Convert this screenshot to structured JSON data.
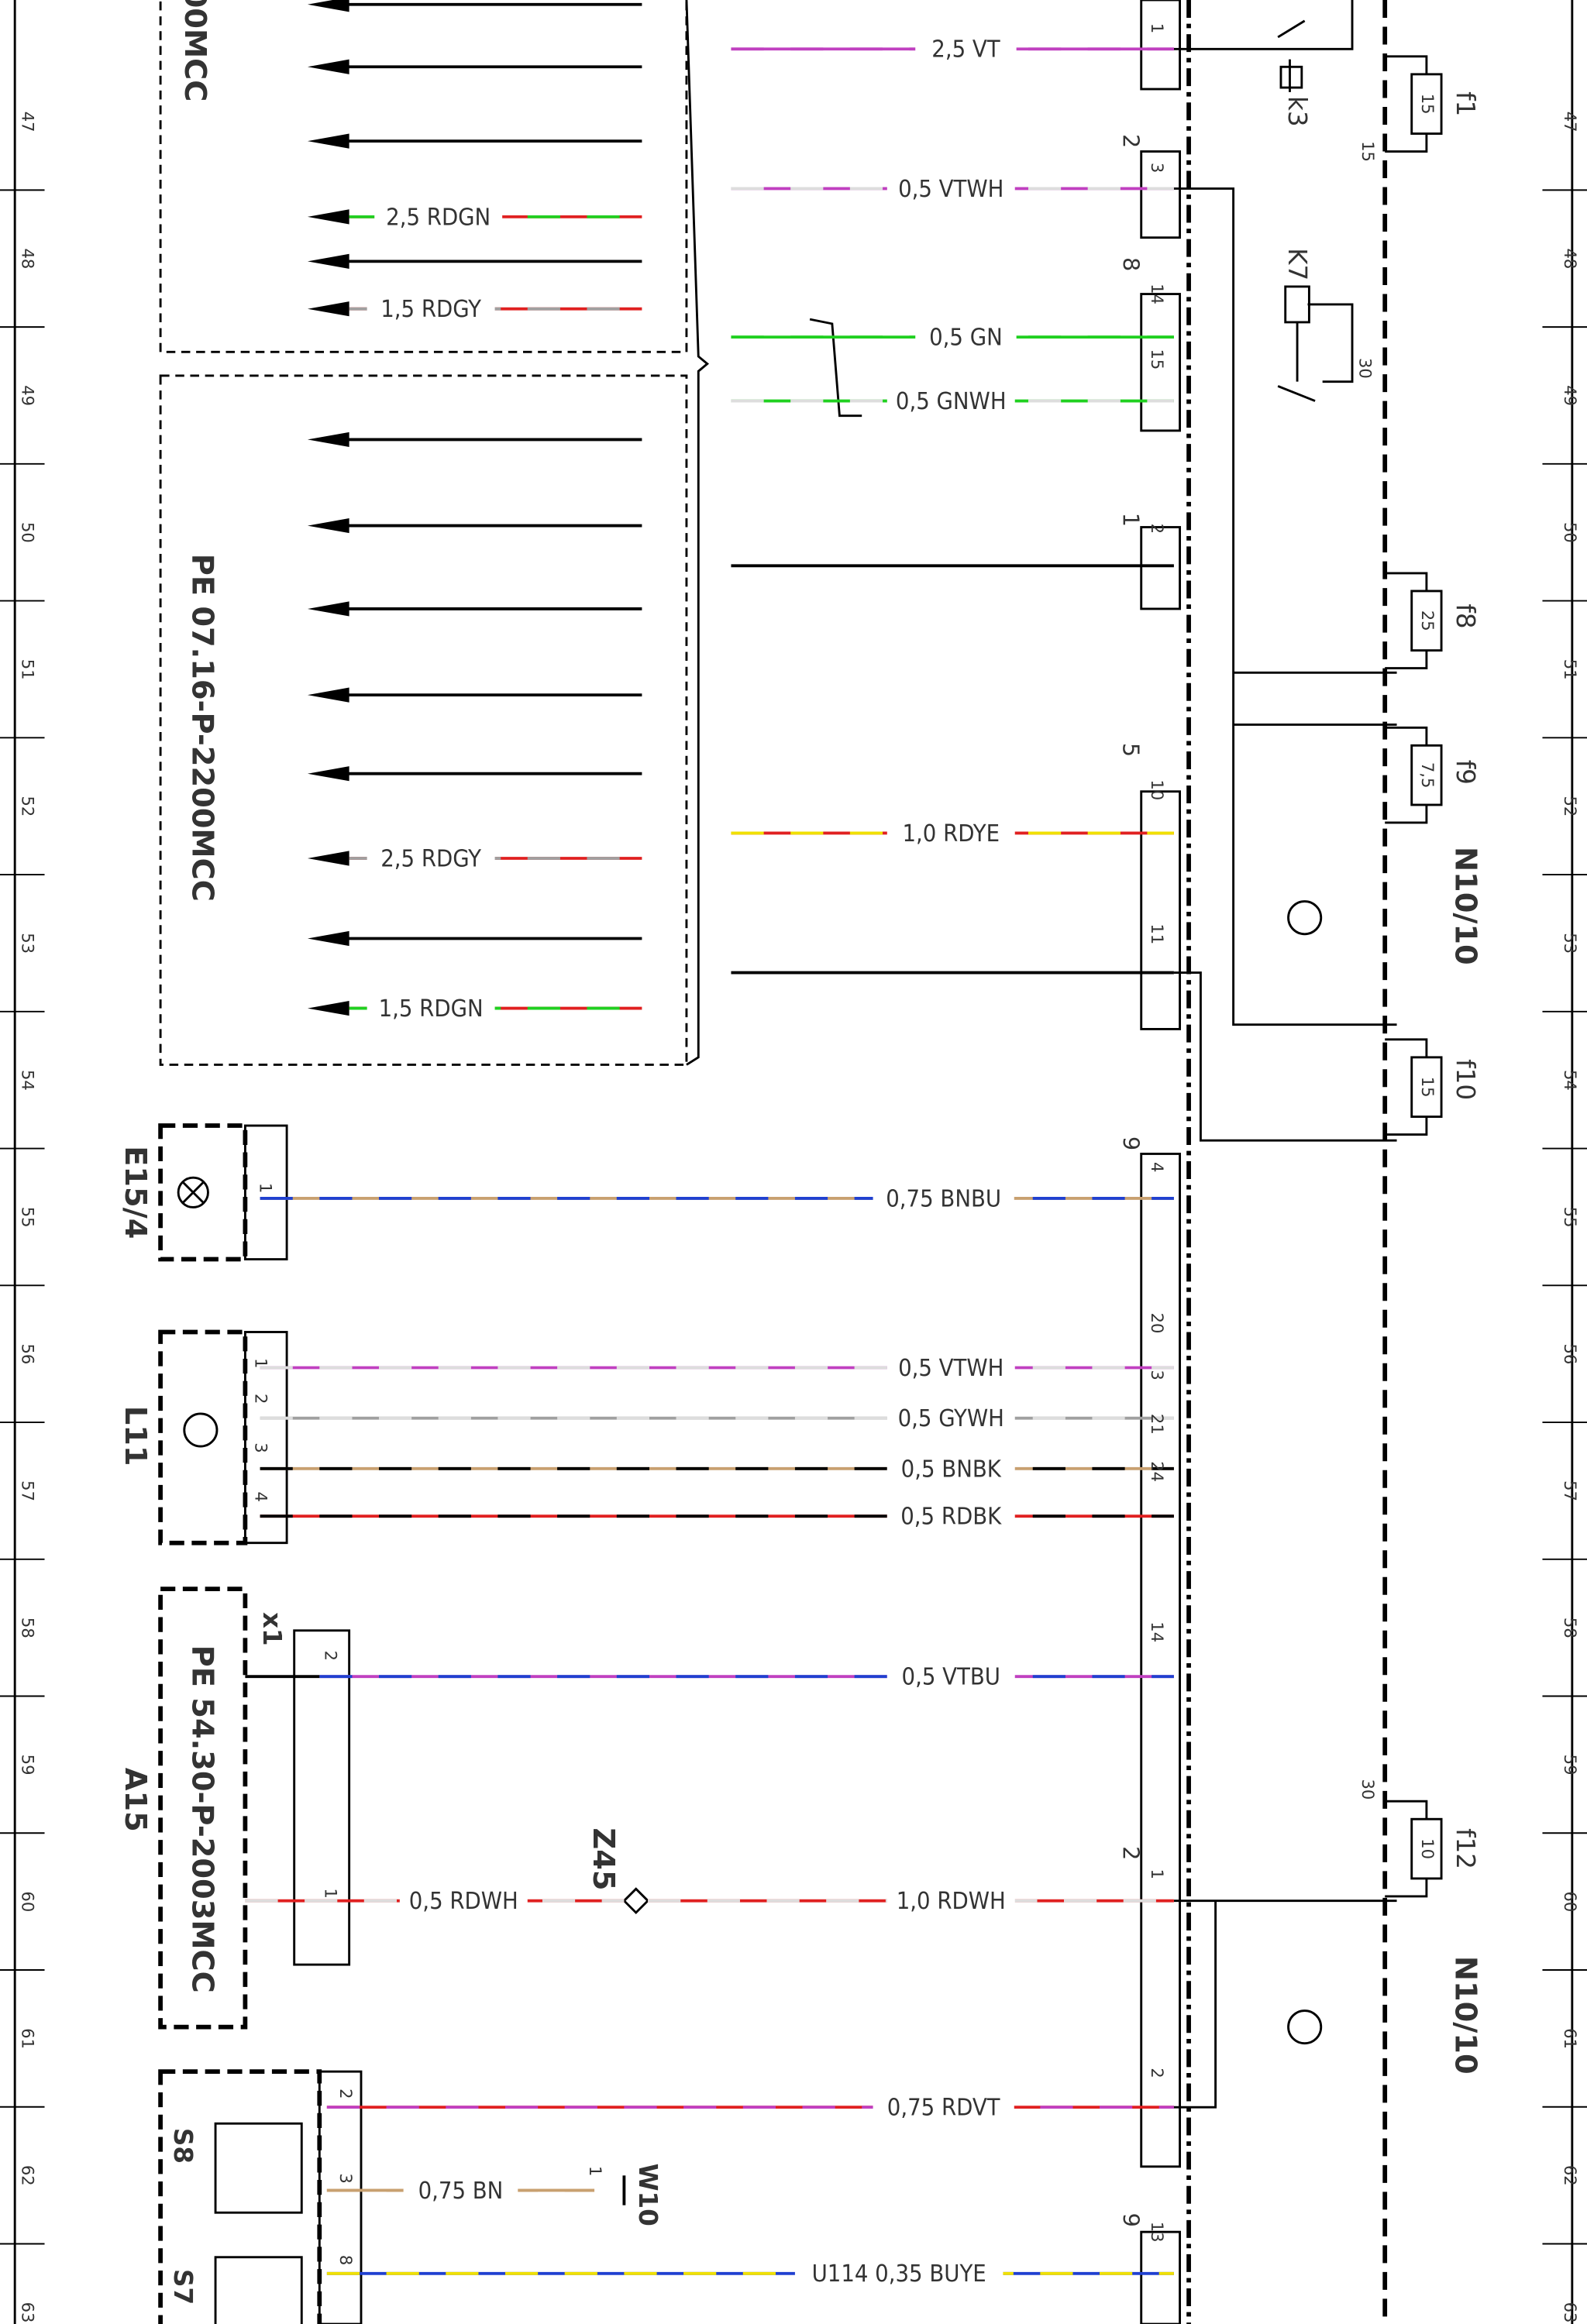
{
  "grid_rows": [
    "47",
    "48",
    "49",
    "50",
    "51",
    "52",
    "53",
    "54",
    "55",
    "56",
    "57",
    "58",
    "59",
    "60",
    "61",
    "62",
    "63"
  ],
  "wires": [
    {
      "label": "2,5 VT",
      "colors": [
        "#c040c0",
        "#c040c0"
      ]
    },
    {
      "label": "0,5 VTWH",
      "colors": [
        "#c040c0",
        "#dddddd"
      ]
    },
    {
      "label": "0,5 GN",
      "colors": [
        "#20d020",
        "#20d020"
      ]
    },
    {
      "label": "0,5 GNWH",
      "colors": [
        "#20d020",
        "#dddddd"
      ]
    },
    {
      "label": "1,0 RDYE",
      "colors": [
        "#e02020",
        "#f0e000"
      ]
    },
    {
      "label": "0,75 BNBU",
      "colors": [
        "#c8a070",
        "#2040d0"
      ]
    },
    {
      "label": "0,5 VTWH",
      "colors": [
        "#c040c0",
        "#dddddd"
      ]
    },
    {
      "label": "0,5 GYWH",
      "colors": [
        "#a0a0a0",
        "#dddddd"
      ]
    },
    {
      "label": "0,5 BNBK",
      "colors": [
        "#c8a070",
        "#000000"
      ]
    },
    {
      "label": "0,5 RDBK",
      "colors": [
        "#e02020",
        "#000000"
      ]
    },
    {
      "label": "0,5 VTBU",
      "colors": [
        "#c040c0",
        "#2040d0"
      ]
    },
    {
      "label": "0,5 RDWH",
      "colors": [
        "#e02020",
        "#dddddd"
      ]
    },
    {
      "label": "1,0 RDWH",
      "colors": [
        "#e02020",
        "#dddddd"
      ]
    },
    {
      "label": "0,75 RDVT",
      "colors": [
        "#e02020",
        "#c040c0"
      ]
    },
    {
      "label": "0,75 BN",
      "colors": [
        "#c8a070",
        "#c8a070"
      ]
    },
    {
      "label": "U114 0,35 BUYE",
      "colors": [
        "#2040d0",
        "#f0e000"
      ]
    }
  ],
  "left_wires": [
    {
      "label": "2,5 RDGN",
      "colors": [
        "#e02020",
        "#20d020"
      ]
    },
    {
      "label": "1,5 RDGY",
      "colors": [
        "#e02020",
        "#a0a0a0"
      ]
    },
    {
      "label": "2,5 RDGY",
      "colors": [
        "#e02020",
        "#a0a0a0"
      ]
    },
    {
      "label": "1,5 RDGN",
      "colors": [
        "#e02020",
        "#20d020"
      ]
    }
  ],
  "components": [
    "k3",
    "K7",
    "f1",
    "f8",
    "f9",
    "f10",
    "f12",
    "N10/10",
    "N10/10",
    "E15/4",
    "L11",
    "A15",
    "x1",
    "Z45",
    "W10",
    "S8",
    "S7"
  ],
  "references": [
    "PE 07.16-P-2200MCC",
    "PE 54.30-P-2003MCC",
    "00MCC"
  ],
  "fuse_ratings": [
    "15",
    "25",
    "7,5",
    "15",
    "10"
  ],
  "terminal_labels": [
    "15",
    "30",
    "30"
  ],
  "pins": [
    "1",
    "3",
    "14",
    "15",
    "2",
    "10",
    "11",
    "4",
    "20",
    "3",
    "21",
    "24",
    "14",
    "1",
    "2",
    "13"
  ],
  "connector_numbers": [
    "2",
    "8",
    "1",
    "5",
    "9",
    "2",
    "9"
  ],
  "device_pins": [
    "1",
    "1",
    "2",
    "3",
    "4",
    "2",
    "1",
    "2",
    "3",
    "8",
    "1"
  ]
}
